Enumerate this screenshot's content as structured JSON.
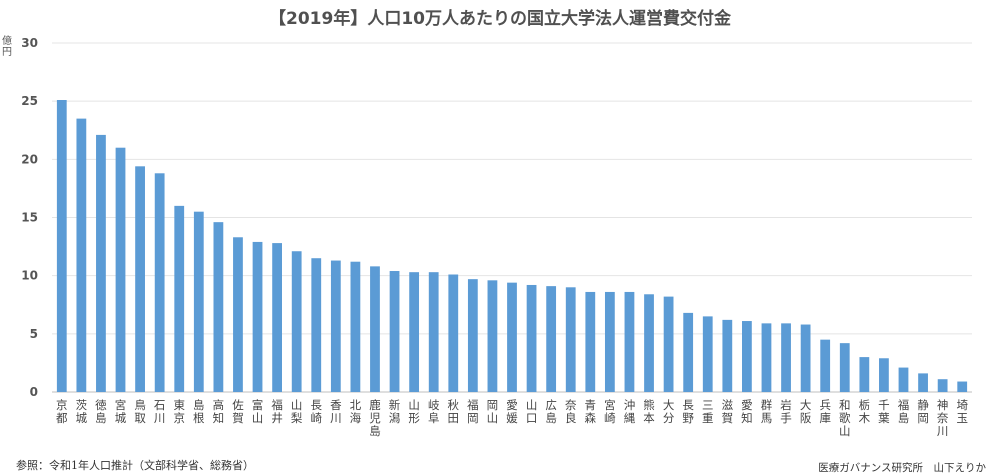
{
  "chart_data": {
    "type": "bar",
    "title": "【2019年】人口10万人あたりの国立大学法人運営費交付金",
    "ylabel": "億円",
    "xlabel": "",
    "ylim": [
      0,
      30
    ],
    "yticks": [
      0,
      5,
      10,
      15,
      20,
      25,
      30
    ],
    "grid": true,
    "bar_color": "#5b9bd5",
    "categories": [
      "京都",
      "茨城",
      "徳島",
      "宮城",
      "鳥取",
      "石川",
      "東京",
      "島根",
      "高知",
      "佐賀",
      "富山",
      "福井",
      "山梨",
      "長崎",
      "香川",
      "北海",
      "鹿児島",
      "新潟",
      "山形",
      "岐阜",
      "秋田",
      "福岡",
      "岡山",
      "愛媛",
      "山口",
      "広島",
      "奈良",
      "青森",
      "宮崎",
      "沖縄",
      "熊本",
      "大分",
      "長野",
      "三重",
      "滋賀",
      "愛知",
      "群馬",
      "岩手",
      "大阪",
      "兵庫",
      "和歌山",
      "栃木",
      "千葉",
      "福島",
      "静岡",
      "神奈川",
      "埼玉"
    ],
    "values": [
      25.1,
      23.5,
      22.1,
      21.0,
      19.4,
      18.8,
      16.0,
      15.5,
      14.6,
      13.3,
      12.9,
      12.8,
      12.1,
      11.5,
      11.3,
      11.2,
      10.8,
      10.4,
      10.3,
      10.3,
      10.1,
      9.7,
      9.6,
      9.4,
      9.2,
      9.1,
      9.0,
      8.6,
      8.6,
      8.6,
      8.4,
      8.2,
      6.8,
      6.5,
      6.2,
      6.1,
      5.9,
      5.9,
      5.8,
      4.5,
      4.2,
      3.0,
      2.9,
      2.1,
      1.6,
      1.1,
      0.9
    ]
  },
  "footer": {
    "source": "参照：令和1年人口推計（文部科学省、総務省）",
    "credit": "医療ガバナンス研究所　山下えりか"
  }
}
